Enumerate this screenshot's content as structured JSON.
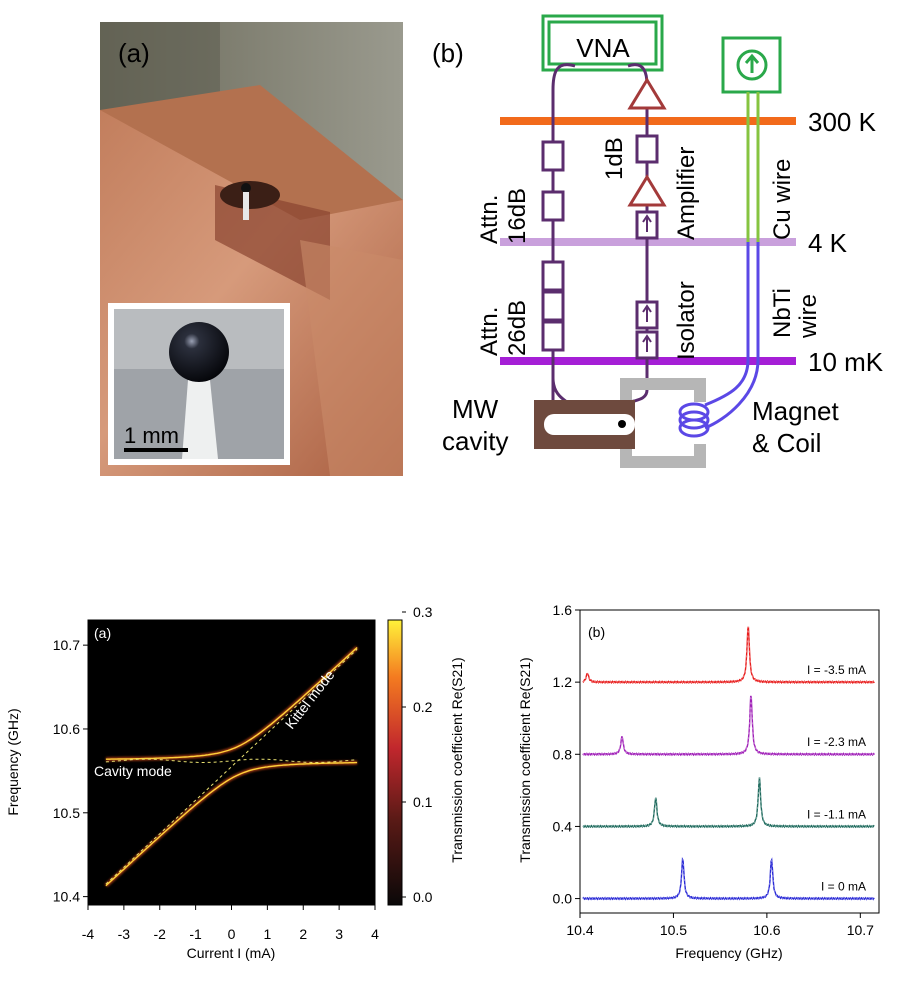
{
  "figure_top": {
    "panel_a_label": "(a)",
    "panel_b_label": "(b)",
    "scale_bar_label": "1 mm",
    "vna_label": "VNA",
    "temps": [
      "300 K",
      "4 K",
      "10 mK"
    ],
    "attn_top": [
      "Attn.",
      "16dB"
    ],
    "attn_bottom": [
      "Attn.",
      "26dB"
    ],
    "amp_gain": "1dB",
    "amplifier_label": "Amplifier",
    "isolator_label": "Isolator",
    "cu_wire_label": "Cu wire",
    "nbti_label": [
      "NbTi",
      "wire"
    ],
    "cavity_label": [
      "MW",
      "cavity"
    ],
    "magnet_label": [
      "Magnet",
      "& Coil"
    ],
    "colors": {
      "line_purple": "#5b2d6e",
      "amp_red": "#a33a3a",
      "bar_300K": "#f26a1b",
      "bar_4K": "#c9a0dc",
      "bar_10mK": "#a51fd6",
      "source_green": "#2aa84a",
      "cu_green": "#86c440",
      "nbti_blue": "#5b48e6",
      "cavity_brown": "#6e4a3e",
      "magnet_gray": "#b6b6b6"
    }
  },
  "chart_data": [
    {
      "type": "heatmap",
      "panel_label": "(a)",
      "xlabel": "Current  I (mA)",
      "ylabel": "Frequency  (GHz)",
      "colorbar_label": "Transmission coefficient  Re(S21)",
      "xlim": [
        -4,
        4
      ],
      "ylim": [
        10.39,
        10.73
      ],
      "data_xlim": [
        -3.5,
        3.5
      ],
      "x_ticks": [
        -4,
        -3,
        -2,
        -1,
        0,
        1,
        2,
        3,
        4
      ],
      "y_ticks": [
        10.4,
        10.5,
        10.6,
        10.7
      ],
      "colorbar_ticks": [
        "0.0",
        "0.1",
        "0.2",
        "0.3"
      ],
      "colorbar_range": [
        0,
        0.3
      ],
      "cavity_mode_GHz": 10.562,
      "kittel_mode": {
        "at_minus_3_5": 10.415,
        "at_plus_3_5": 10.695
      },
      "coupling_g_GHz": 0.017,
      "annotations": [
        "Cavity mode",
        "Kittel mode"
      ]
    },
    {
      "type": "line",
      "panel_label": "(b)",
      "xlabel": "Frequency  (GHz)",
      "ylabel": "Transmission coefficient  Re(S21)",
      "xlim": [
        10.4,
        10.72
      ],
      "ylim": [
        -0.08,
        1.6
      ],
      "x_ticks": [
        "10.4",
        "10.5",
        "10.6",
        "10.7"
      ],
      "y_ticks": [
        "0.0",
        "0.4",
        "0.8",
        "1.2",
        "1.6"
      ],
      "series": [
        {
          "label": "I =      0 mA",
          "offset": 0.0,
          "color": "#2a2ad6",
          "peaks": [
            {
              "x": 10.51,
              "h": 0.22
            },
            {
              "x": 10.605,
              "h": 0.22
            }
          ]
        },
        {
          "label": "I = -1.1 mA",
          "offset": 0.4,
          "color": "#1f6b5e",
          "peaks": [
            {
              "x": 10.481,
              "h": 0.16
            },
            {
              "x": 10.592,
              "h": 0.27
            }
          ]
        },
        {
          "label": "I = -2.3 mA",
          "offset": 0.8,
          "color": "#a020b8",
          "peaks": [
            {
              "x": 10.445,
              "h": 0.1
            },
            {
              "x": 10.583,
              "h": 0.33
            }
          ]
        },
        {
          "label": "I = -3.5 mA",
          "offset": 1.2,
          "color": "#e81e1e",
          "peaks": [
            {
              "x": 10.408,
              "h": 0.05
            },
            {
              "x": 10.58,
              "h": 0.31
            }
          ]
        }
      ]
    }
  ]
}
